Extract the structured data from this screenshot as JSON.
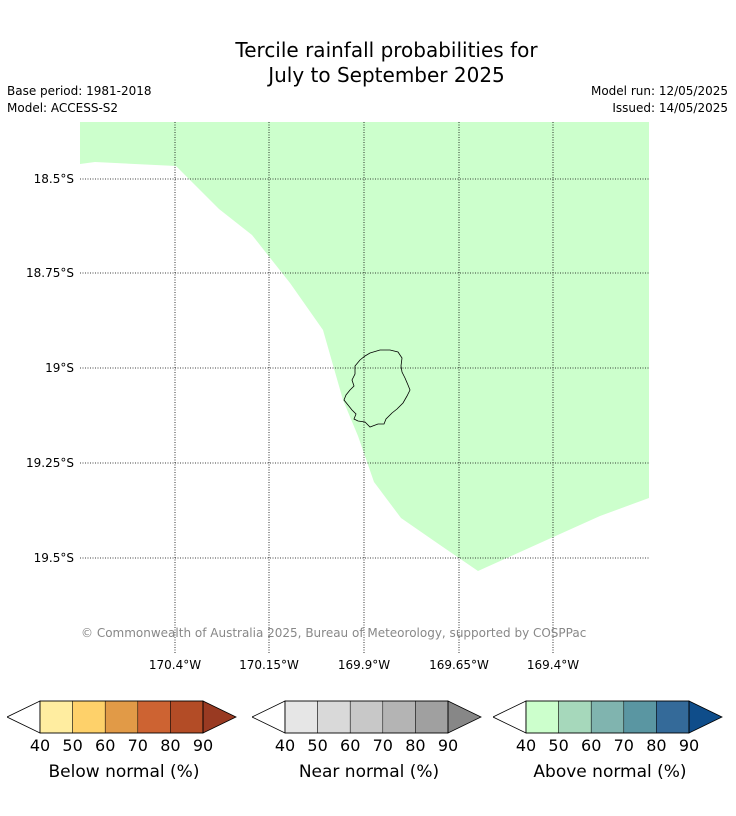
{
  "header": {
    "title_line1": "Tercile rainfall probabilities for",
    "title_line2": "July to September 2025",
    "base_period": "Base period: 1981-2018",
    "model": "Model: ACCESS-S2",
    "model_run": "Model run: 12/05/2025",
    "issued": "Issued: 14/05/2025"
  },
  "map": {
    "lat_labels": [
      "18.5°S",
      "18.75°S",
      "19°S",
      "19.25°S",
      "19.5°S"
    ],
    "lon_labels": [
      "170.4°W",
      "170.15°W",
      "169.9°W",
      "169.65°W",
      "169.4°W"
    ],
    "copyright": "© Commonwealth of Australia 2025, Bureau of Meteorology, supported by COSPPac",
    "fill_color": "#ccffcc",
    "fill_category": "Above normal 40-50%"
  },
  "colorbars": [
    {
      "title": "Below normal (%)",
      "ticks": [
        "40",
        "50",
        "60",
        "70",
        "80",
        "90"
      ],
      "colors": [
        "#ffeda0",
        "#fed16a",
        "#e19a47",
        "#cd6332",
        "#b34c26",
        "#993a22"
      ]
    },
    {
      "title": "Near normal (%)",
      "ticks": [
        "40",
        "50",
        "60",
        "70",
        "80",
        "90"
      ],
      "colors": [
        "#e6e6e6",
        "#d9d9d9",
        "#c8c8c8",
        "#b4b4b4",
        "#a0a0a0",
        "#878787"
      ]
    },
    {
      "title": "Above normal (%)",
      "ticks": [
        "40",
        "50",
        "60",
        "70",
        "80",
        "90"
      ],
      "colors": [
        "#ccffcc",
        "#a6d8bb",
        "#80b4af",
        "#5a96a2",
        "#346a99",
        "#0f4d8a"
      ]
    }
  ]
}
